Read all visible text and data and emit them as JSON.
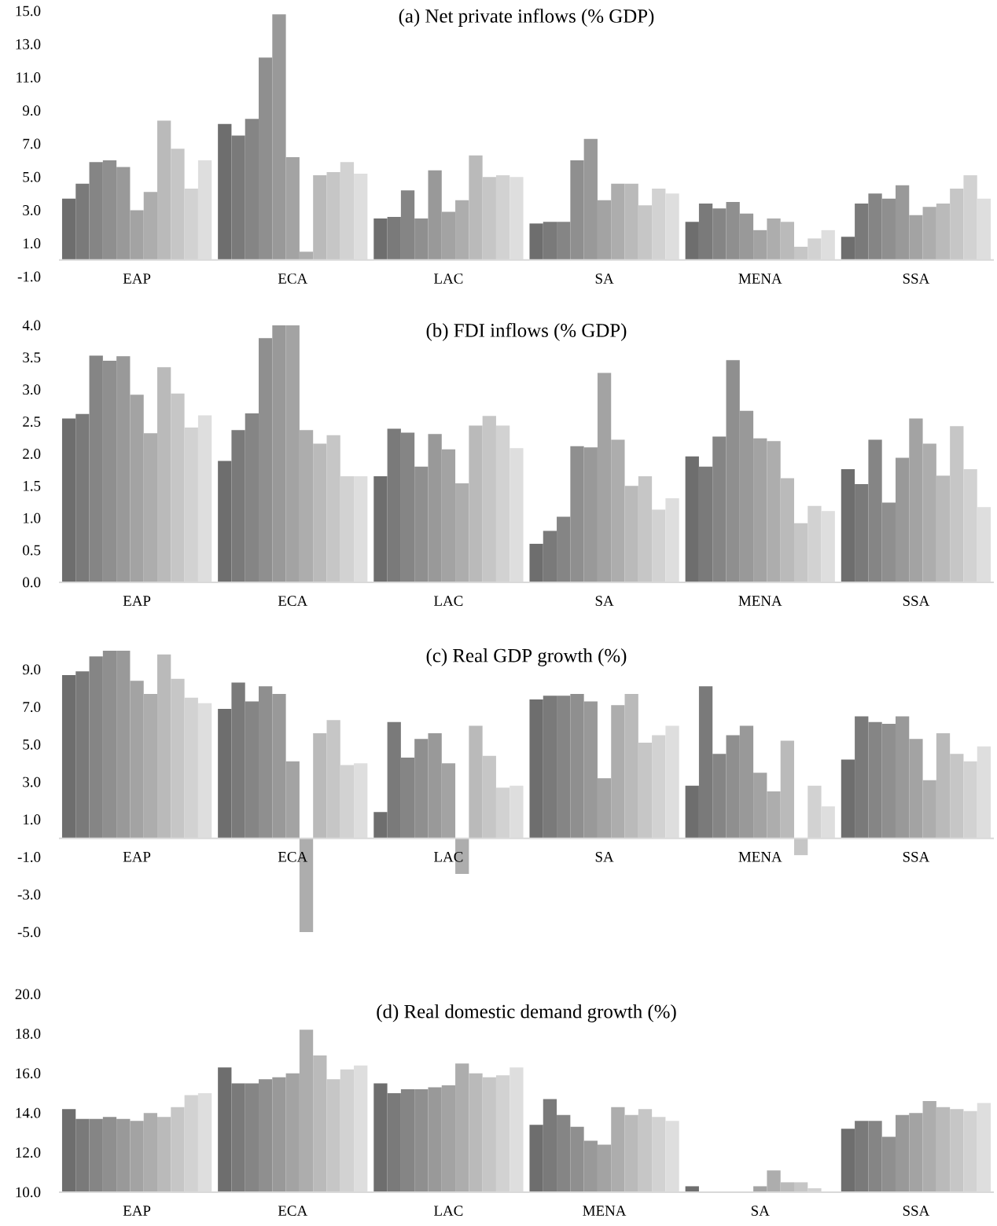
{
  "chart_data": [
    {
      "type": "bar",
      "title": "(a) Net private inflows (% GDP)",
      "categories": [
        "EAP",
        "ECA",
        "LAC",
        "SA",
        "MENA",
        "SSA"
      ],
      "ylim": [
        -1,
        15
      ],
      "yticks": [
        {
          "value": -1,
          "label": "-1.0"
        },
        {
          "value": 1,
          "label": "1.0"
        },
        {
          "value": 3,
          "label": "3.0"
        },
        {
          "value": 5,
          "label": "5.0"
        },
        {
          "value": 7,
          "label": "7.0"
        },
        {
          "value": 9,
          "label": "9.0"
        },
        {
          "value": 11,
          "label": "11.0"
        },
        {
          "value": 13,
          "label": "13.0"
        },
        {
          "value": 15,
          "label": "15.0"
        }
      ],
      "series": [
        {
          "color": "#6e6e6e",
          "values": [
            3.7,
            8.2,
            2.5,
            2.2,
            2.3,
            1.4
          ]
        },
        {
          "color": "#7a7a7a",
          "values": [
            4.6,
            7.5,
            2.6,
            2.3,
            3.4,
            3.4
          ]
        },
        {
          "color": "#858585",
          "values": [
            5.9,
            8.5,
            4.2,
            2.3,
            3.1,
            4.0
          ]
        },
        {
          "color": "#8f8f8f",
          "values": [
            6.0,
            12.2,
            2.5,
            6.0,
            3.5,
            3.7
          ]
        },
        {
          "color": "#999999",
          "values": [
            5.6,
            14.8,
            5.4,
            7.3,
            2.8,
            4.5
          ]
        },
        {
          "color": "#a3a3a3",
          "values": [
            3.0,
            6.2,
            2.9,
            3.6,
            1.8,
            2.7
          ]
        },
        {
          "color": "#adadad",
          "values": [
            4.1,
            0.5,
            3.6,
            4.6,
            2.5,
            3.2
          ]
        },
        {
          "color": "#bababa",
          "values": [
            8.4,
            5.1,
            6.3,
            4.6,
            2.3,
            3.4
          ]
        },
        {
          "color": "#c6c6c6",
          "values": [
            6.7,
            5.3,
            5.0,
            3.3,
            0.8,
            4.3
          ]
        },
        {
          "color": "#d2d2d2",
          "values": [
            4.3,
            5.9,
            5.1,
            4.3,
            1.3,
            5.1
          ]
        },
        {
          "color": "#dedede",
          "values": [
            6.0,
            5.2,
            5.0,
            4.0,
            1.8,
            3.7
          ]
        }
      ]
    },
    {
      "type": "bar",
      "title": "(b) FDI inflows (% GDP)",
      "categories": [
        "EAP",
        "ECA",
        "LAC",
        "SA",
        "MENA",
        "SSA"
      ],
      "ylim": [
        0,
        4
      ],
      "yticks": [
        {
          "value": 0,
          "label": "0.0"
        },
        {
          "value": 0.5,
          "label": "0.5"
        },
        {
          "value": 1,
          "label": "1.0"
        },
        {
          "value": 1.5,
          "label": "1.5"
        },
        {
          "value": 2,
          "label": "2.0"
        },
        {
          "value": 2.5,
          "label": "2.5"
        },
        {
          "value": 3,
          "label": "3.0"
        },
        {
          "value": 3.5,
          "label": "3.5"
        },
        {
          "value": 4,
          "label": "4.0"
        }
      ],
      "series": [
        {
          "color": "#6e6e6e",
          "values": [
            2.55,
            1.89,
            1.65,
            0.6,
            1.96,
            1.76
          ]
        },
        {
          "color": "#7a7a7a",
          "values": [
            2.62,
            2.37,
            2.39,
            0.8,
            1.8,
            1.53
          ]
        },
        {
          "color": "#858585",
          "values": [
            3.53,
            2.63,
            2.33,
            1.02,
            2.27,
            2.22
          ]
        },
        {
          "color": "#8f8f8f",
          "values": [
            3.45,
            3.8,
            1.8,
            2.12,
            3.46,
            1.24
          ]
        },
        {
          "color": "#999999",
          "values": [
            3.52,
            4.0,
            2.31,
            2.1,
            2.67,
            1.94
          ]
        },
        {
          "color": "#a3a3a3",
          "values": [
            2.92,
            4.0,
            2.07,
            3.26,
            2.24,
            2.55
          ]
        },
        {
          "color": "#adadad",
          "values": [
            2.32,
            2.37,
            1.54,
            2.22,
            2.2,
            2.16
          ]
        },
        {
          "color": "#bababa",
          "values": [
            3.35,
            2.16,
            2.44,
            1.5,
            1.62,
            1.66
          ]
        },
        {
          "color": "#c6c6c6",
          "values": [
            2.94,
            2.29,
            2.59,
            1.65,
            0.92,
            2.43
          ]
        },
        {
          "color": "#d2d2d2",
          "values": [
            2.41,
            1.65,
            2.44,
            1.13,
            1.19,
            1.76
          ]
        },
        {
          "color": "#dedede",
          "values": [
            2.6,
            1.65,
            2.09,
            1.31,
            1.11,
            1.17
          ]
        }
      ]
    },
    {
      "type": "bar",
      "title": "(c) Real GDP growth (%)",
      "categories": [
        "EAP",
        "ECA",
        "LAC",
        "SA",
        "MENA",
        "SSA"
      ],
      "ylim": [
        -5,
        10
      ],
      "yticks": [
        {
          "value": -5,
          "label": "-5.0"
        },
        {
          "value": -3,
          "label": "-3.0"
        },
        {
          "value": -1,
          "label": "-1.0"
        },
        {
          "value": 1,
          "label": "1.0"
        },
        {
          "value": 3,
          "label": "3.0"
        },
        {
          "value": 5,
          "label": "5.0"
        },
        {
          "value": 7,
          "label": "7.0"
        },
        {
          "value": 9,
          "label": "9.0"
        }
      ],
      "series": [
        {
          "color": "#6e6e6e",
          "values": [
            8.7,
            6.9,
            1.4,
            7.4,
            2.8,
            4.2
          ]
        },
        {
          "color": "#7a7a7a",
          "values": [
            8.9,
            8.3,
            6.2,
            7.6,
            8.1,
            6.5
          ]
        },
        {
          "color": "#858585",
          "values": [
            9.7,
            7.3,
            4.3,
            7.6,
            4.5,
            6.2
          ]
        },
        {
          "color": "#8f8f8f",
          "values": [
            10.0,
            8.1,
            5.3,
            7.7,
            5.5,
            6.1
          ]
        },
        {
          "color": "#999999",
          "values": [
            10.0,
            7.7,
            5.6,
            7.3,
            6.0,
            6.5
          ]
        },
        {
          "color": "#a3a3a3",
          "values": [
            8.4,
            4.1,
            4.0,
            3.2,
            3.5,
            5.3
          ]
        },
        {
          "color": "#adadad",
          "values": [
            7.7,
            -5.0,
            -1.9,
            7.1,
            2.5,
            3.1
          ]
        },
        {
          "color": "#bababa",
          "values": [
            9.8,
            5.6,
            6.0,
            7.7,
            5.2,
            5.6
          ]
        },
        {
          "color": "#c6c6c6",
          "values": [
            8.5,
            6.3,
            4.4,
            5.1,
            -0.9,
            4.5
          ]
        },
        {
          "color": "#d2d2d2",
          "values": [
            7.5,
            3.9,
            2.7,
            5.5,
            2.8,
            4.1
          ]
        },
        {
          "color": "#dedede",
          "values": [
            7.2,
            4.0,
            2.8,
            6.0,
            1.7,
            4.9
          ]
        }
      ]
    },
    {
      "type": "bar",
      "title": "(d) Real domestic demand growth (%)",
      "categories": [
        "EAP",
        "ECA",
        "LAC",
        "MENA",
        "SA",
        "SSA"
      ],
      "ylim": [
        10,
        20
      ],
      "yticks": [
        {
          "value": 10,
          "label": "10.0"
        },
        {
          "value": 12,
          "label": "12.0"
        },
        {
          "value": 14,
          "label": "14.0"
        },
        {
          "value": 16,
          "label": "16.0"
        },
        {
          "value": 18,
          "label": "18.0"
        },
        {
          "value": 20,
          "label": "20.0"
        }
      ],
      "series": [
        {
          "color": "#6e6e6e",
          "values": [
            14.2,
            16.3,
            15.5,
            13.4,
            10.3,
            13.2
          ]
        },
        {
          "color": "#7a7a7a",
          "values": [
            13.7,
            15.5,
            15.0,
            14.7,
            10.0,
            13.6
          ]
        },
        {
          "color": "#858585",
          "values": [
            13.7,
            15.5,
            15.2,
            13.9,
            10.0,
            13.6
          ]
        },
        {
          "color": "#8f8f8f",
          "values": [
            13.8,
            15.7,
            15.2,
            13.3,
            10.0,
            12.8
          ]
        },
        {
          "color": "#999999",
          "values": [
            13.7,
            15.8,
            15.3,
            12.6,
            10.0,
            13.9
          ]
        },
        {
          "color": "#a3a3a3",
          "values": [
            13.6,
            16.0,
            15.4,
            12.4,
            10.3,
            14.0
          ]
        },
        {
          "color": "#adadad",
          "values": [
            14.0,
            18.2,
            16.5,
            14.3,
            11.1,
            14.6
          ]
        },
        {
          "color": "#bababa",
          "values": [
            13.8,
            16.9,
            16.0,
            13.9,
            10.5,
            14.3
          ]
        },
        {
          "color": "#c6c6c6",
          "values": [
            14.3,
            15.7,
            15.8,
            14.2,
            10.5,
            14.2
          ]
        },
        {
          "color": "#d2d2d2",
          "values": [
            14.9,
            16.2,
            15.9,
            13.8,
            10.2,
            14.1
          ]
        },
        {
          "color": "#dedede",
          "values": [
            15.0,
            16.4,
            16.3,
            13.6,
            10.0,
            14.5
          ]
        }
      ]
    }
  ]
}
